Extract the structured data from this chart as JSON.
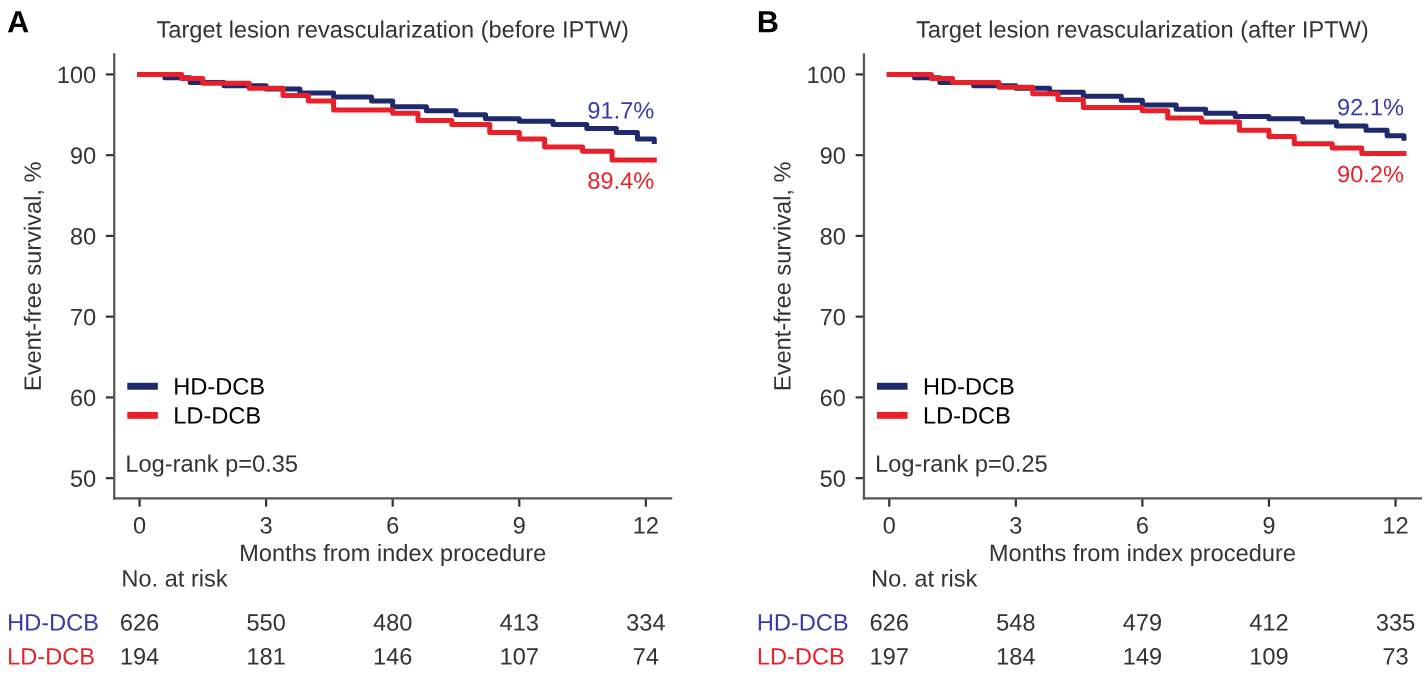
{
  "chart_data": [
    {
      "type": "step",
      "title": "Target lesion revascularization (before IPTW)",
      "xlabel": "Months from index procedure",
      "ylabel": "Event-free survival, %",
      "xlim": [
        -0.6,
        12.6
      ],
      "xticks": [
        0,
        3,
        6,
        9,
        12
      ],
      "ylim": [
        47.5,
        102.5
      ],
      "yticks": [
        50,
        60,
        70,
        80,
        90,
        100
      ],
      "grid": false,
      "legend": "lower left",
      "line_style": "solid",
      "marker": "none",
      "series": [
        {
          "name": "HD-DCB",
          "color": "#1f2a6e",
          "x": [
            0,
            0.6,
            1.2,
            2,
            3,
            3.8,
            4.6,
            5.5,
            6,
            6.8,
            7.5,
            8.2,
            9,
            9.8,
            10.6,
            11.3,
            11.8,
            12.2
          ],
          "values": [
            100,
            99.6,
            99,
            98.6,
            98.2,
            97.7,
            97.2,
            96.7,
            96,
            95.5,
            95,
            94.5,
            94.2,
            93.8,
            93.3,
            92.8,
            92,
            91.7
          ]
        },
        {
          "name": "LD-DCB",
          "color": "#e8202a",
          "x": [
            0,
            1,
            1.5,
            2.6,
            3.4,
            4,
            4.6,
            6,
            6.6,
            7.4,
            8.3,
            9,
            9.6,
            10.5,
            11.2,
            12.2
          ],
          "values": [
            100,
            99.5,
            98.9,
            98.3,
            97.4,
            96.7,
            95.6,
            95.2,
            94.3,
            93.8,
            92.8,
            92,
            91,
            90.5,
            89.4,
            89.4
          ]
        }
      ],
      "annotations": [
        "A",
        "Log-rank p=0.35",
        "No. at risk",
        "HD-DCB",
        "626",
        "550",
        "480",
        "413",
        "334",
        "LD-DCB",
        "194",
        "181",
        "146",
        "107",
        "74",
        "91.7%",
        "89.4%"
      ]
    },
    {
      "type": "step",
      "title": "Target lesion revascularization (after IPTW)",
      "xlabel": "Months from index procedure",
      "ylabel": "Event-free survival, %",
      "xlim": [
        -0.6,
        12.6
      ],
      "xticks": [
        0,
        3,
        6,
        9,
        12
      ],
      "ylim": [
        47.5,
        102.5
      ],
      "yticks": [
        50,
        60,
        70,
        80,
        90,
        100
      ],
      "grid": false,
      "legend": "lower left",
      "line_style": "solid",
      "marker": "none",
      "series": [
        {
          "name": "HD-DCB",
          "color": "#1f2a6e",
          "x": [
            0,
            0.6,
            1.2,
            2,
            3,
            3.8,
            4.6,
            5.5,
            6,
            6.8,
            7.5,
            8.2,
            9,
            9.8,
            10.6,
            11.3,
            11.8,
            12.2
          ],
          "values": [
            100,
            99.6,
            99,
            98.6,
            98.3,
            97.8,
            97.3,
            96.8,
            96.2,
            95.7,
            95.2,
            94.8,
            94.5,
            94.1,
            93.6,
            93.1,
            92.4,
            92.1
          ]
        },
        {
          "name": "LD-DCB",
          "color": "#e8202a",
          "x": [
            0,
            1,
            1.5,
            2.6,
            3.4,
            4,
            4.6,
            6,
            6.6,
            7.4,
            8.3,
            9,
            9.6,
            10.5,
            11.2,
            12.2
          ],
          "values": [
            100,
            99.5,
            99,
            98.4,
            97.6,
            96.9,
            95.9,
            95.5,
            94.6,
            94.1,
            93.1,
            92.3,
            91.4,
            90.9,
            90.2,
            90.2
          ]
        }
      ],
      "annotations": [
        "B",
        "Log-rank p=0.25",
        "No. at risk",
        "HD-DCB",
        "626",
        "548",
        "479",
        "412",
        "335",
        "LD-DCB",
        "197",
        "184",
        "149",
        "109",
        "73",
        "92.1%",
        "90.2%"
      ]
    }
  ]
}
